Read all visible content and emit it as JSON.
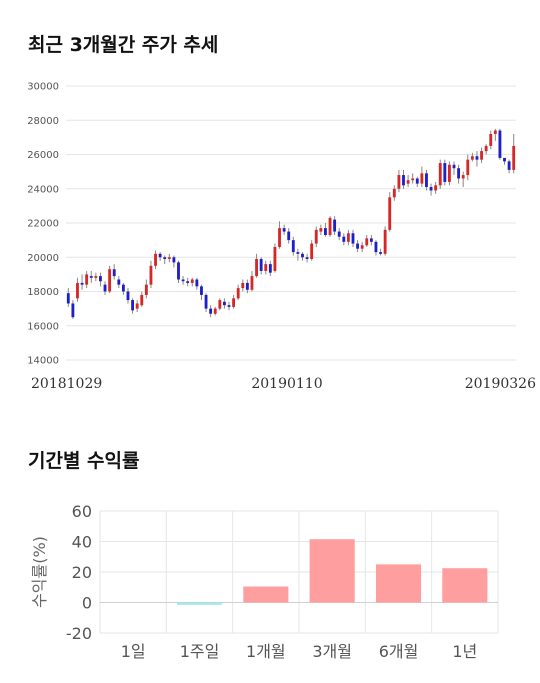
{
  "sections": {
    "price_title": "최근 3개월간 주가 추세",
    "returns_title": "기간별 수익률"
  },
  "colors": {
    "up": "#d62728",
    "down": "#1f1fc8",
    "grid": "#e6e6e6",
    "bar_positive": "#ff9e9e",
    "bar_negative": "#9eeaea"
  },
  "chart_data": [
    {
      "type": "candlestick",
      "title": "최근 3개월간 주가 추세",
      "ylim": [
        14000,
        30000
      ],
      "yticks": [
        14000,
        16000,
        18000,
        20000,
        22000,
        24000,
        26000,
        28000,
        30000
      ],
      "x_tick_labels": [
        "20181029",
        "20190110",
        "20190326"
      ],
      "grid": true,
      "series": [
        [
          17900,
          17300,
          18200,
          17100
        ],
        [
          17300,
          16500,
          17500,
          16400
        ],
        [
          17600,
          18500,
          18800,
          17400
        ],
        [
          18500,
          18400,
          19000,
          18100
        ],
        [
          18400,
          19000,
          19200,
          18200
        ],
        [
          18900,
          18800,
          19200,
          18500
        ],
        [
          18800,
          18900,
          19100,
          18600
        ],
        [
          18900,
          18600,
          19100,
          18300
        ],
        [
          18400,
          18000,
          18600,
          17800
        ],
        [
          18000,
          19300,
          19500,
          17900
        ],
        [
          19300,
          18900,
          19600,
          18700
        ],
        [
          18700,
          18400,
          18900,
          18200
        ],
        [
          18400,
          18000,
          18500,
          17800
        ],
        [
          18000,
          17500,
          18200,
          17300
        ],
        [
          17500,
          16900,
          17600,
          16700
        ],
        [
          17000,
          17300,
          17500,
          16800
        ],
        [
          17200,
          17800,
          18000,
          17100
        ],
        [
          17800,
          18400,
          18700,
          17600
        ],
        [
          18400,
          19500,
          19800,
          18200
        ],
        [
          19500,
          20200,
          20400,
          19300
        ],
        [
          20200,
          20000,
          20300,
          19800
        ],
        [
          20000,
          19900,
          20100,
          19600
        ],
        [
          19900,
          20000,
          20200,
          19700
        ],
        [
          20000,
          19700,
          20100,
          19400
        ],
        [
          19700,
          18700,
          19800,
          18500
        ],
        [
          18700,
          18600,
          18900,
          18400
        ],
        [
          18600,
          18500,
          18800,
          18300
        ],
        [
          18500,
          18700,
          18800,
          18300
        ],
        [
          18700,
          18300,
          18800,
          18100
        ],
        [
          18300,
          17800,
          18400,
          17500
        ],
        [
          17800,
          17000,
          17900,
          16800
        ],
        [
          17000,
          16700,
          17200,
          16500
        ],
        [
          16700,
          17000,
          17100,
          16600
        ],
        [
          17000,
          17500,
          17600,
          16900
        ],
        [
          17400,
          17200,
          17600,
          17000
        ],
        [
          17200,
          17100,
          17400,
          16900
        ],
        [
          17100,
          17600,
          17800,
          17000
        ],
        [
          17600,
          18200,
          18400,
          17500
        ],
        [
          18200,
          18500,
          18700,
          18000
        ],
        [
          18500,
          18100,
          18700,
          17900
        ],
        [
          18100,
          18900,
          19200,
          18000
        ],
        [
          18900,
          19900,
          20200,
          18800
        ],
        [
          19900,
          19200,
          20000,
          19000
        ],
        [
          19200,
          19600,
          19800,
          19000
        ],
        [
          19600,
          19100,
          19800,
          18900
        ],
        [
          19200,
          20600,
          20800,
          19100
        ],
        [
          20600,
          21700,
          22100,
          20500
        ],
        [
          21700,
          21500,
          21900,
          21300
        ],
        [
          21500,
          21000,
          21700,
          20800
        ],
        [
          21000,
          20300,
          21200,
          20100
        ],
        [
          20300,
          20200,
          20500,
          19800
        ],
        [
          20200,
          20000,
          20300,
          19800
        ],
        [
          20000,
          19900,
          20200,
          19700
        ],
        [
          19900,
          20800,
          21000,
          19800
        ],
        [
          20800,
          21600,
          21800,
          20600
        ],
        [
          21500,
          21700,
          21900,
          21300
        ],
        [
          21700,
          21300,
          22000,
          21200
        ],
        [
          21300,
          22300,
          22400,
          21200
        ],
        [
          22200,
          21500,
          22400,
          21300
        ],
        [
          21500,
          21200,
          21700,
          21000
        ],
        [
          21200,
          20900,
          21400,
          20700
        ],
        [
          20900,
          21400,
          21600,
          20700
        ],
        [
          21400,
          20800,
          21600,
          20600
        ],
        [
          20800,
          20500,
          21000,
          20300
        ],
        [
          20500,
          20700,
          20900,
          20300
        ],
        [
          20700,
          21100,
          21300,
          20600
        ],
        [
          21100,
          20900,
          21300,
          20700
        ],
        [
          20900,
          20300,
          21000,
          20100
        ],
        [
          20300,
          20200,
          20500,
          20100
        ],
        [
          20200,
          21600,
          21800,
          20100
        ],
        [
          21600,
          23500,
          23800,
          21500
        ],
        [
          23500,
          24000,
          24200,
          23300
        ],
        [
          24000,
          24800,
          25100,
          23800
        ],
        [
          24800,
          24200,
          25100,
          24000
        ],
        [
          24300,
          24500,
          24800,
          24100
        ],
        [
          24500,
          24600,
          24900,
          24300
        ],
        [
          24600,
          24300,
          24700,
          24100
        ],
        [
          24300,
          24900,
          25300,
          24100
        ],
        [
          24900,
          24100,
          25100,
          23900
        ],
        [
          24100,
          23900,
          24300,
          23600
        ],
        [
          23900,
          24200,
          24400,
          23700
        ],
        [
          24200,
          25500,
          25700,
          24000
        ],
        [
          25500,
          24400,
          25700,
          24200
        ],
        [
          24400,
          25400,
          25600,
          24200
        ],
        [
          25400,
          25200,
          25600,
          24800
        ],
        [
          25200,
          24600,
          25400,
          24300
        ],
        [
          24600,
          24800,
          25000,
          24100
        ],
        [
          24800,
          25700,
          26000,
          24500
        ],
        [
          25700,
          25900,
          26100,
          25600
        ],
        [
          25900,
          25700,
          26200,
          25300
        ],
        [
          25700,
          26200,
          26400,
          25500
        ],
        [
          26200,
          26500,
          26600,
          26000
        ],
        [
          26500,
          27200,
          27400,
          26300
        ],
        [
          27200,
          27400,
          27500,
          26800
        ],
        [
          27400,
          25800,
          27500,
          25700
        ],
        [
          25800,
          25600,
          25800,
          25400
        ],
        [
          25600,
          25100,
          25700,
          24900
        ],
        [
          25100,
          26500,
          27200,
          24900
        ]
      ]
    },
    {
      "type": "bar",
      "title": "기간별 수익률",
      "categories": [
        "1일",
        "1주일",
        "1개월",
        "3개월",
        "6개월",
        "1년"
      ],
      "values": [
        0,
        -1.5,
        10.5,
        41.5,
        25,
        22.5
      ],
      "ylabel": "수익률(%)",
      "ylim": [
        -20,
        60
      ],
      "yticks": [
        -20,
        0,
        20,
        40,
        60
      ],
      "grid": true
    }
  ]
}
